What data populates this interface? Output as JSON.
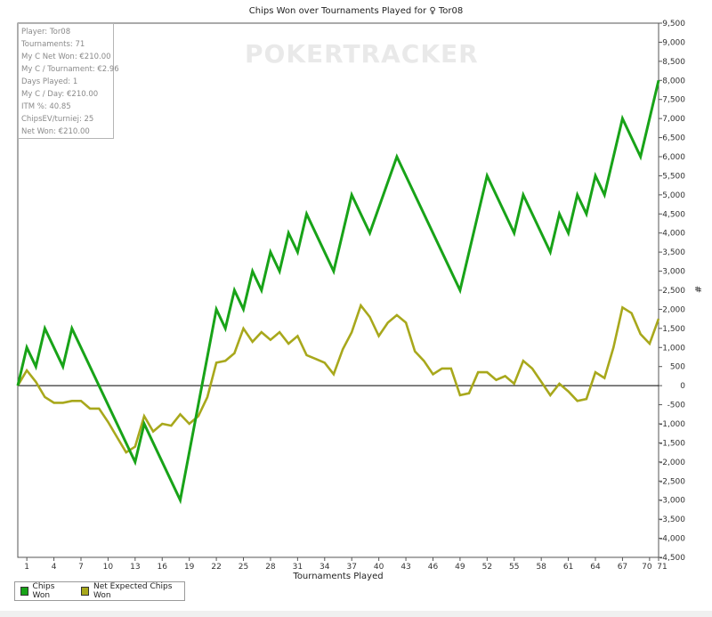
{
  "watermark": "POKERTRACKER",
  "stats": [
    "Player: Tor08",
    "Tournaments: 71",
    "My C Net Won: €210.00",
    "My C / Tournament: €2.96",
    "Days Played: 1",
    "My C / Day: €210.00",
    "ITM %: 40.85",
    "ChipsEV/turniej: 25",
    "Net Won: €210.00"
  ],
  "colors": {
    "chips_won": "#18a318",
    "net_expected": "#a8a81c",
    "zero_line": "#000000"
  },
  "chart_data": {
    "type": "line",
    "title": "Chips Won over Tournaments Played for ♀ Tor08",
    "xlabel": "Tournaments Played",
    "ylabel": "#",
    "xlim": [
      0,
      71
    ],
    "ylim": [
      -4500,
      9500
    ],
    "x_ticks": [
      "1",
      "4",
      "7",
      "10",
      "13",
      "16",
      "19",
      "22",
      "25",
      "28",
      "31",
      "34",
      "37",
      "40",
      "43",
      "46",
      "49",
      "52",
      "55",
      "58",
      "61",
      "64",
      "67",
      "70",
      "71"
    ],
    "x_tick_values": [
      1,
      4,
      7,
      10,
      13,
      16,
      19,
      22,
      25,
      28,
      31,
      34,
      37,
      40,
      43,
      46,
      49,
      52,
      55,
      58,
      61,
      64,
      67,
      70,
      71
    ],
    "y_ticks": [
      9500,
      9000,
      8500,
      8000,
      7500,
      7000,
      6500,
      6000,
      5500,
      5000,
      4500,
      4000,
      3500,
      3000,
      2500,
      2000,
      1500,
      1000,
      500,
      0,
      -500,
      -1000,
      -1500,
      -2000,
      -2500,
      -3000,
      -3500,
      -4000,
      -4500
    ],
    "y_tick_labels": [
      "9,500",
      "9,000",
      "8,500",
      "8,000",
      "7,500",
      "7,000",
      "6,500",
      "6,000",
      "5,500",
      "5,000",
      "4,500",
      "4,000",
      "3,500",
      "3,000",
      "2,500",
      "2,000",
      "1,500",
      "1,000",
      "500",
      "0",
      "-500",
      "-1,000",
      "-1,500",
      "-2,000",
      "-2,500",
      "-3,000",
      "-3,500",
      "-4,000",
      "-4,500"
    ],
    "series": [
      {
        "name": "Chips Won",
        "x": [
          0,
          1,
          2,
          3,
          5,
          6,
          13,
          14,
          18,
          22,
          23,
          24,
          25,
          26,
          27,
          28,
          29,
          30,
          31,
          32,
          33,
          35,
          37,
          39,
          42,
          49,
          52,
          55,
          56,
          59,
          60,
          61,
          62,
          63,
          64,
          65,
          67,
          69,
          71
        ],
        "values": [
          0,
          1000,
          500,
          1500,
          500,
          1500,
          -2000,
          -1000,
          -3000,
          2000,
          1500,
          2500,
          2000,
          3000,
          2500,
          3500,
          3000,
          4000,
          3500,
          4500,
          4000,
          3000,
          5000,
          4000,
          6000,
          2500,
          5500,
          4000,
          5000,
          3500,
          4500,
          4000,
          5000,
          4500,
          5500,
          5000,
          7000,
          6000,
          8000
        ]
      },
      {
        "name": "Net Expected Chips Won",
        "x": [
          0,
          1,
          2,
          3,
          4,
          5,
          6,
          7,
          8,
          9,
          10,
          11,
          12,
          13,
          14,
          15,
          16,
          17,
          18,
          19,
          20,
          21,
          22,
          23,
          24,
          25,
          26,
          27,
          28,
          29,
          30,
          31,
          32,
          33,
          34,
          35,
          36,
          37,
          38,
          39,
          40,
          41,
          42,
          43,
          44,
          45,
          46,
          47,
          48,
          49,
          50,
          51,
          52,
          53,
          54,
          55,
          56,
          57,
          58,
          59,
          60,
          61,
          62,
          63,
          64,
          65,
          66,
          67,
          68,
          69,
          70,
          71
        ],
        "values": [
          0,
          400,
          100,
          -300,
          -450,
          -450,
          -400,
          -400,
          -600,
          -600,
          -950,
          -1350,
          -1750,
          -1600,
          -800,
          -1200,
          -1000,
          -1050,
          -750,
          -1000,
          -800,
          -300,
          600,
          650,
          850,
          1500,
          1150,
          1400,
          1200,
          1400,
          1100,
          1300,
          800,
          700,
          600,
          300,
          950,
          1400,
          2100,
          1800,
          1300,
          1650,
          1850,
          1650,
          900,
          650,
          300,
          450,
          450,
          -250,
          -200,
          350,
          350,
          150,
          250,
          50,
          650,
          450,
          100,
          -250,
          50,
          -150,
          -400,
          -350,
          350,
          200,
          1000,
          2050,
          1900,
          1350,
          1100,
          1750
        ]
      }
    ]
  }
}
